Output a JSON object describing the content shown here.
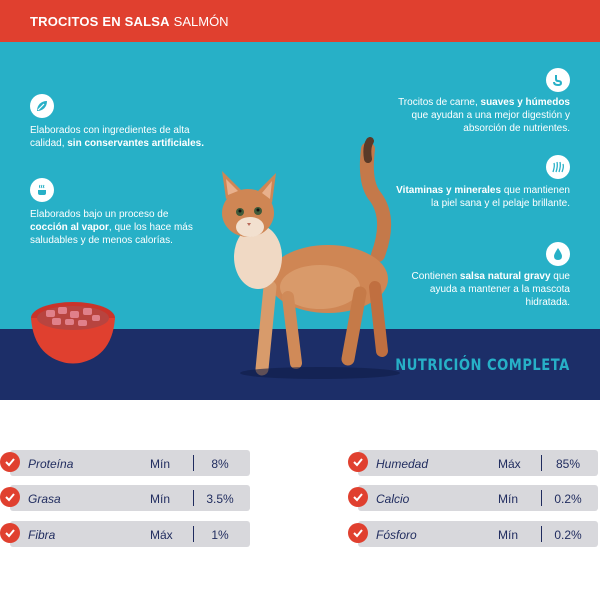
{
  "header": {
    "title_bold": "TROCITOS EN SALSA",
    "title_light": "SALMÓN",
    "bg_color": "#e0402f"
  },
  "hero": {
    "bg_color": "#27b0c7",
    "band_color": "#1c2e68",
    "tagline": "NUTRICIÓN COMPLETA",
    "features_left": [
      {
        "icon": "leaf-icon",
        "text_before": "Elaborados con ingredientes de alta calidad, ",
        "text_bold": "sin conservantes artificiales.",
        "text_after": ""
      },
      {
        "icon": "steam-pot-icon",
        "text_before": "Elaborados bajo un proceso de ",
        "text_bold": "cocción al vapor",
        "text_after": ", que los hace más saludables y de menos calorías."
      }
    ],
    "features_right": [
      {
        "icon": "stomach-icon",
        "text_before": "Trocitos de carne, ",
        "text_bold": "suaves y húmedos",
        "text_after": " que ayudan a una mejor digestión y absorción de nutrientes."
      },
      {
        "icon": "fur-icon",
        "text_before": "",
        "text_bold": "Vitaminas y minerales",
        "text_after": " que mantienen la piel sana y el pelaje brillante."
      },
      {
        "icon": "water-drop-icon",
        "text_before": "Contienen ",
        "text_bold": "salsa natural gravy",
        "text_after": " que ayuda a mantener a la mascota hidratada."
      }
    ]
  },
  "nutrition": {
    "left": [
      {
        "name": "Proteína",
        "qualifier": "Mín",
        "value": "8%"
      },
      {
        "name": "Grasa",
        "qualifier": "Mín",
        "value": "3.5%"
      },
      {
        "name": "Fibra",
        "qualifier": "Máx",
        "value": "1%"
      }
    ],
    "right": [
      {
        "name": "Humedad",
        "qualifier": "Máx",
        "value": "85%"
      },
      {
        "name": "Calcio",
        "qualifier": "Mín",
        "value": "0.2%"
      },
      {
        "name": "Fósforo",
        "qualifier": "Mín",
        "value": "0.2%"
      }
    ]
  }
}
